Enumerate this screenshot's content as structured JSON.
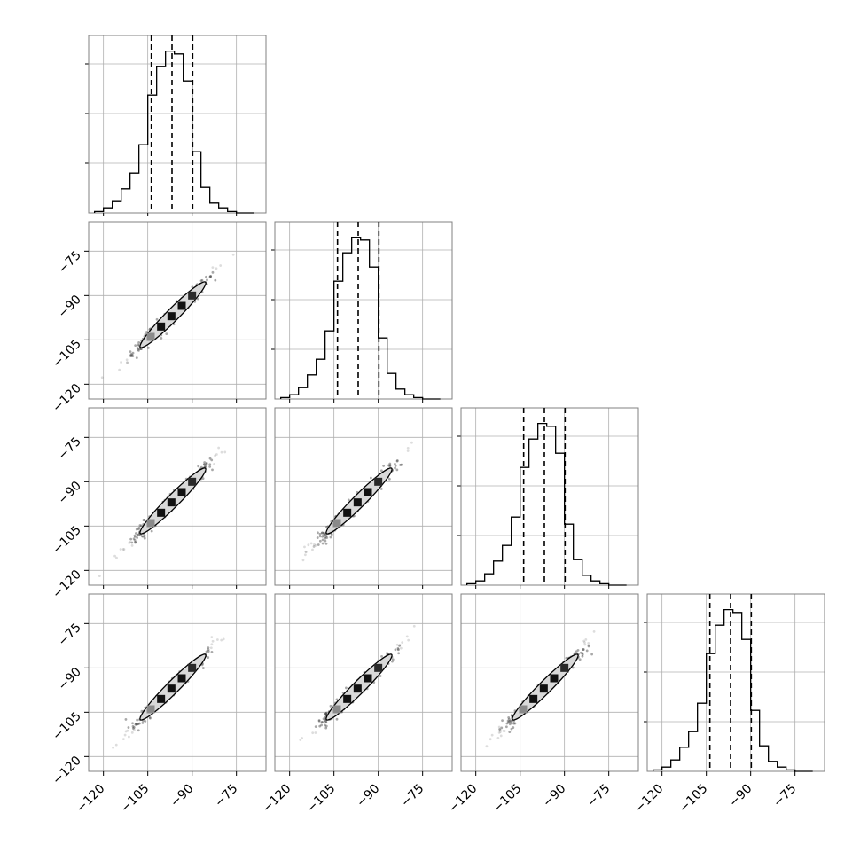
{
  "chart_data": {
    "type": "corner",
    "n_params": 4,
    "grid": true,
    "axis_range": [
      -125,
      -65
    ],
    "tick_values": [
      -120,
      -105,
      -90,
      -75
    ],
    "tick_labels": [
      "−120",
      "−105",
      "−90",
      "−75"
    ],
    "quantiles": [
      -103.8,
      -96.8,
      -89.8
    ],
    "histogram": {
      "bin_edges": [
        -123,
        -120,
        -117,
        -114,
        -111,
        -108,
        -105,
        -102,
        -99,
        -96,
        -93,
        -90,
        -87,
        -84,
        -81,
        -78,
        -75,
        -72,
        -69
      ],
      "counts": [
        1,
        3,
        8,
        17,
        28,
        48,
        83,
        103,
        114,
        112,
        93,
        43,
        18,
        7,
        3,
        1,
        0,
        0
      ]
    },
    "scatter_ranges": [
      -122,
      -73
    ],
    "contour_levels": [
      "0.5",
      "1.0",
      "1.5",
      "2.0"
    ],
    "ylim_hist": [
      0,
      125
    ],
    "colors": {
      "line": "#000000",
      "grid": "#b0b0b0",
      "contour_fill": "#d9d9d9",
      "points": "#404040"
    }
  }
}
